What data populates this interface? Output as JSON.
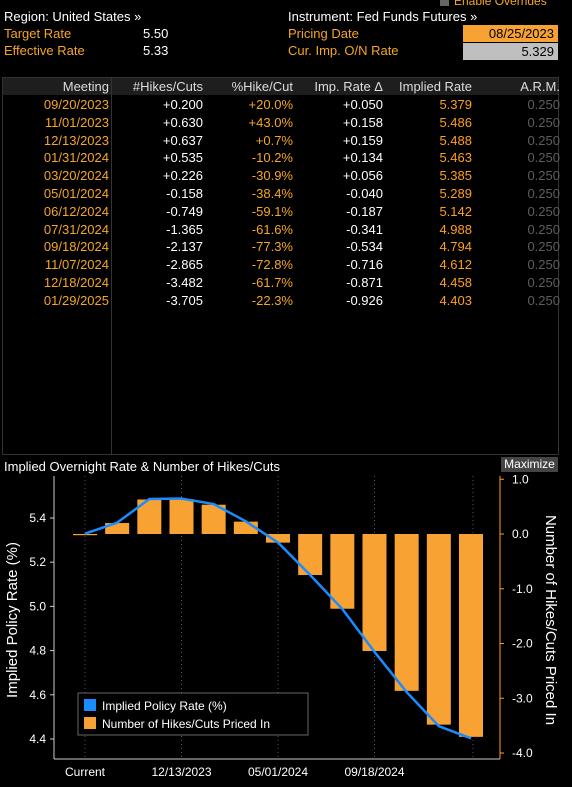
{
  "header": {
    "enable_overrides": "Enable Overrides",
    "region_label": "Region: United States »",
    "target_rate_label": "Target Rate",
    "target_rate_value": "5.50",
    "effective_rate_label": "Effective Rate",
    "effective_rate_value": "5.33",
    "instrument_label": "Instrument: Fed Funds Futures »",
    "pricing_date_label": "Pricing Date",
    "pricing_date_value": "08/25/2023",
    "cur_rate_label": "Cur. Imp. O/N Rate",
    "cur_rate_value": "5.329"
  },
  "table": {
    "columns": [
      "Meeting",
      "#Hikes/Cuts",
      "%Hike/Cut",
      "Imp. Rate Δ",
      "Implied Rate",
      "A.R.M."
    ],
    "rows": [
      {
        "meeting": "09/20/2023",
        "hikes": "+0.200",
        "pct": "+20.0%",
        "delta": "+0.050",
        "implied": "5.379",
        "arm": "0.250"
      },
      {
        "meeting": "11/01/2023",
        "hikes": "+0.630",
        "pct": "+43.0%",
        "delta": "+0.158",
        "implied": "5.486",
        "arm": "0.250"
      },
      {
        "meeting": "12/13/2023",
        "hikes": "+0.637",
        "pct": "+0.7%",
        "delta": "+0.159",
        "implied": "5.488",
        "arm": "0.250"
      },
      {
        "meeting": "01/31/2024",
        "hikes": "+0.535",
        "pct": "-10.2%",
        "delta": "+0.134",
        "implied": "5.463",
        "arm": "0.250"
      },
      {
        "meeting": "03/20/2024",
        "hikes": "+0.226",
        "pct": "-30.9%",
        "delta": "+0.056",
        "implied": "5.385",
        "arm": "0.250"
      },
      {
        "meeting": "05/01/2024",
        "hikes": "-0.158",
        "pct": "-38.4%",
        "delta": "-0.040",
        "implied": "5.289",
        "arm": "0.250"
      },
      {
        "meeting": "06/12/2024",
        "hikes": "-0.749",
        "pct": "-59.1%",
        "delta": "-0.187",
        "implied": "5.142",
        "arm": "0.250"
      },
      {
        "meeting": "07/31/2024",
        "hikes": "-1.365",
        "pct": "-61.6%",
        "delta": "-0.341",
        "implied": "4.988",
        "arm": "0.250"
      },
      {
        "meeting": "09/18/2024",
        "hikes": "-2.137",
        "pct": "-77.3%",
        "delta": "-0.534",
        "implied": "4.794",
        "arm": "0.250"
      },
      {
        "meeting": "11/07/2024",
        "hikes": "-2.865",
        "pct": "-72.8%",
        "delta": "-0.716",
        "implied": "4.612",
        "arm": "0.250"
      },
      {
        "meeting": "12/18/2024",
        "hikes": "-3.482",
        "pct": "-61.7%",
        "delta": "-0.871",
        "implied": "4.458",
        "arm": "0.250"
      },
      {
        "meeting": "01/29/2025",
        "hikes": "-3.705",
        "pct": "-22.3%",
        "delta": "-0.926",
        "implied": "4.403",
        "arm": "0.250"
      }
    ]
  },
  "chart_section": {
    "title": "Implied Overnight Rate & Number of Hikes/Cuts",
    "maximize_label": "Maximize"
  },
  "chart_data": {
    "type": "bar",
    "title": "Implied Overnight Rate & Number of Hikes/Cuts",
    "categories": [
      "Current",
      "09/20/2023",
      "11/01/2023",
      "12/13/2023",
      "01/31/2024",
      "03/20/2024",
      "05/01/2024",
      "06/12/2024",
      "07/31/2024",
      "09/18/2024",
      "11/07/2024",
      "12/18/2024",
      "01/29/2025"
    ],
    "x_tick_labels": [
      "Current",
      "12/13/2023",
      "05/01/2024",
      "09/18/2024"
    ],
    "series": [
      {
        "name": "Implied Policy Rate (%)",
        "type": "line",
        "axis": "left",
        "color": "#1a8cff",
        "values": [
          5.329,
          5.379,
          5.486,
          5.488,
          5.463,
          5.385,
          5.289,
          5.142,
          4.988,
          4.794,
          4.612,
          4.458,
          4.403
        ]
      },
      {
        "name": "Number of Hikes/Cuts Priced In",
        "type": "bar",
        "axis": "right",
        "color": "#f7a233",
        "values": [
          0.0,
          0.2,
          0.63,
          0.637,
          0.535,
          0.226,
          -0.158,
          -0.749,
          -1.365,
          -2.137,
          -2.865,
          -3.482,
          -3.705
        ]
      }
    ],
    "ylabel": "Implied Policy Rate (%)",
    "y2label": "Number of Hikes/Cuts Priced In",
    "ylim": [
      4.35,
      5.6
    ],
    "y2lim": [
      -4.0,
      1.0
    ],
    "y_ticks": [
      "5.4",
      "5.2",
      "5.0",
      "4.8",
      "4.6",
      "4.4"
    ],
    "y2_ticks": [
      "1.0",
      "0.0",
      "-1.0",
      "-2.0",
      "-3.0",
      "-4.0"
    ],
    "legend_position": "bottom-left",
    "grid": "vertical-dotted"
  }
}
